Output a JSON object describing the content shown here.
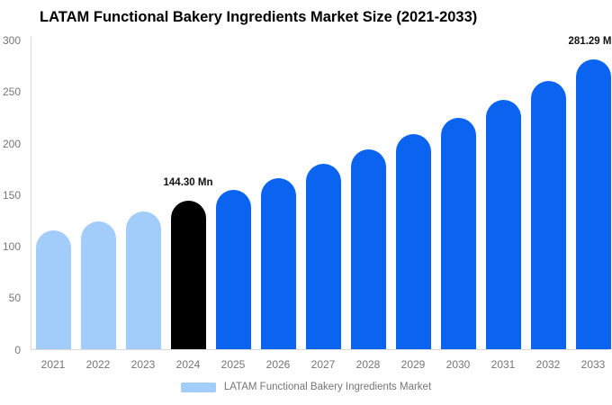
{
  "title": "LATAM Functional Bakery Ingredients Market Size (2021-2033)",
  "chart_data": {
    "type": "bar",
    "categories": [
      "2021",
      "2022",
      "2023",
      "2024",
      "2025",
      "2026",
      "2027",
      "2028",
      "2029",
      "2030",
      "2031",
      "2032",
      "2033"
    ],
    "values": [
      115.5,
      124.4,
      134.0,
      144.3,
      155.4,
      166.5,
      180.3,
      194.1,
      209.1,
      225.2,
      242.0,
      261.0,
      281.29
    ],
    "unit": "Mn",
    "ylim": [
      0,
      300
    ],
    "yticks": [
      0,
      50,
      100,
      150,
      200,
      250,
      300
    ],
    "grid": false,
    "legend_position": "bottom",
    "bar_colors": {
      "historical": "#A2CCFA",
      "highlight": "#000000",
      "forecast": "#0B64F0"
    },
    "color_map": [
      "historical",
      "historical",
      "historical",
      "highlight",
      "forecast",
      "forecast",
      "forecast",
      "forecast",
      "forecast",
      "forecast",
      "forecast",
      "forecast",
      "forecast"
    ],
    "annotations": [
      {
        "year": "2024",
        "label": "144.30 Mn"
      },
      {
        "year": "2033",
        "label": "281.29 Mn"
      }
    ],
    "legend": [
      {
        "label": "LATAM Functional Bakery Ingredients Market",
        "color": "#A2CCFA"
      }
    ],
    "text_colors": {
      "title": "#000000",
      "ticks": "#757575",
      "annotation": "#111111",
      "legend": "#757575"
    }
  }
}
